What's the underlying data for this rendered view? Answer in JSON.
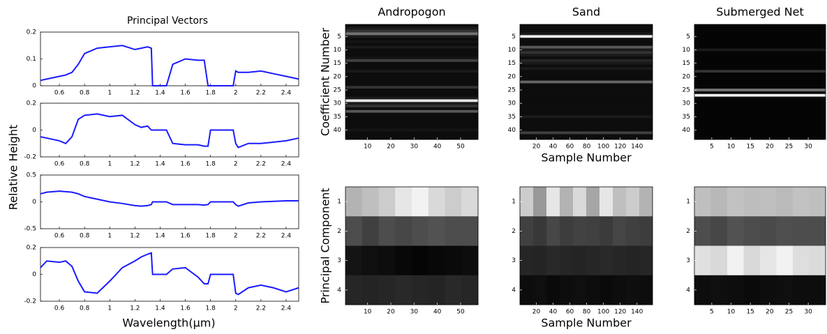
{
  "chart_data": [
    {
      "type": "line",
      "title": "Principal Vectors",
      "ylabel": "Relative Height",
      "color": "#1a1aff",
      "x": [
        0.45,
        0.5,
        0.6,
        0.65,
        0.7,
        0.75,
        0.8,
        0.9,
        1.0,
        1.1,
        1.2,
        1.25,
        1.3,
        1.33,
        1.34,
        1.4,
        1.45,
        1.5,
        1.6,
        1.7,
        1.75,
        1.78,
        1.8,
        1.9,
        1.98,
        2.0,
        2.02,
        2.1,
        2.2,
        2.3,
        2.4,
        2.5
      ],
      "values": [
        0.02,
        0.025,
        0.035,
        0.04,
        0.05,
        0.08,
        0.12,
        0.14,
        0.145,
        0.15,
        0.135,
        0.14,
        0.145,
        0.14,
        0,
        0,
        0,
        0.08,
        0.1,
        0.095,
        0.095,
        0,
        0,
        0,
        0,
        0.055,
        0.05,
        0.05,
        0.055,
        0.045,
        0.035,
        0.025
      ],
      "xlim": [
        0.45,
        2.5
      ],
      "xticks": [
        0.6,
        0.8,
        1,
        1.2,
        1.4,
        1.6,
        1.8,
        2,
        2.2,
        2.4
      ],
      "ylim": [
        0,
        0.2
      ],
      "yticks": [
        0,
        0.1,
        0.2
      ]
    },
    {
      "type": "line",
      "color": "#1a1aff",
      "x": [
        0.45,
        0.5,
        0.6,
        0.65,
        0.7,
        0.75,
        0.8,
        0.9,
        1.0,
        1.1,
        1.2,
        1.25,
        1.3,
        1.33,
        1.34,
        1.4,
        1.45,
        1.5,
        1.6,
        1.7,
        1.75,
        1.78,
        1.8,
        1.9,
        1.98,
        2.0,
        2.02,
        2.1,
        2.2,
        2.3,
        2.4,
        2.5
      ],
      "values": [
        -0.05,
        -0.06,
        -0.08,
        -0.1,
        -0.05,
        0.08,
        0.11,
        0.12,
        0.1,
        0.11,
        0.04,
        0.02,
        0.03,
        0,
        0,
        0,
        0,
        -0.1,
        -0.11,
        -0.11,
        -0.12,
        -0.12,
        0,
        0,
        0,
        -0.1,
        -0.13,
        -0.1,
        -0.1,
        -0.09,
        -0.08,
        -0.06
      ],
      "xlim": [
        0.45,
        2.5
      ],
      "xticks": [
        0.6,
        0.8,
        1,
        1.2,
        1.4,
        1.6,
        1.8,
        2,
        2.2,
        2.4
      ],
      "ylim": [
        -0.2,
        0.2
      ],
      "yticks": [
        -0.2,
        0,
        0.2
      ]
    },
    {
      "type": "line",
      "color": "#1a1aff",
      "x": [
        0.45,
        0.5,
        0.6,
        0.65,
        0.7,
        0.75,
        0.8,
        0.9,
        1.0,
        1.1,
        1.2,
        1.25,
        1.3,
        1.33,
        1.34,
        1.4,
        1.45,
        1.5,
        1.6,
        1.7,
        1.75,
        1.78,
        1.8,
        1.9,
        1.98,
        2.0,
        2.02,
        2.1,
        2.2,
        2.3,
        2.4,
        2.5
      ],
      "values": [
        0.15,
        0.18,
        0.2,
        0.19,
        0.18,
        0.15,
        0.1,
        0.05,
        0,
        -0.03,
        -0.07,
        -0.08,
        -0.07,
        -0.05,
        0,
        0,
        0,
        -0.05,
        -0.05,
        -0.05,
        -0.06,
        -0.05,
        0,
        0,
        0,
        -0.05,
        -0.08,
        -0.02,
        0,
        0.01,
        0.02,
        0.02
      ],
      "xlim": [
        0.45,
        2.5
      ],
      "xticks": [
        0.6,
        0.8,
        1,
        1.2,
        1.4,
        1.6,
        1.8,
        2,
        2.2,
        2.4
      ],
      "ylim": [
        -0.5,
        0.5
      ],
      "yticks": [
        -0.5,
        0,
        0.5
      ]
    },
    {
      "type": "line",
      "xlabel": "Wavelength(μm)",
      "color": "#1a1aff",
      "x": [
        0.45,
        0.5,
        0.6,
        0.65,
        0.7,
        0.75,
        0.8,
        0.9,
        1.0,
        1.1,
        1.2,
        1.25,
        1.3,
        1.33,
        1.34,
        1.4,
        1.45,
        1.5,
        1.6,
        1.7,
        1.75,
        1.78,
        1.8,
        1.9,
        1.98,
        2.0,
        2.02,
        2.1,
        2.2,
        2.3,
        2.4,
        2.5
      ],
      "values": [
        0.05,
        0.1,
        0.09,
        0.1,
        0.06,
        -0.05,
        -0.13,
        -0.14,
        -0.05,
        0.05,
        0.1,
        0.13,
        0.15,
        0.16,
        0,
        0,
        0,
        0.04,
        0.05,
        -0.02,
        -0.07,
        -0.07,
        0,
        0,
        0,
        -0.14,
        -0.15,
        -0.1,
        -0.08,
        -0.1,
        -0.13,
        -0.1
      ],
      "xlim": [
        0.45,
        2.5
      ],
      "xticks": [
        0.6,
        0.8,
        1,
        1.2,
        1.4,
        1.6,
        1.8,
        2,
        2.2,
        2.4
      ],
      "ylim": [
        -0.2,
        0.2
      ],
      "yticks": [
        -0.2,
        0,
        0.2
      ]
    },
    {
      "type": "heatmap",
      "title": "Andropogon",
      "ylabel": "Coefficient Number",
      "values": [
        [
          0.05
        ],
        [
          0.1
        ],
        [
          0.2
        ],
        [
          0.45
        ],
        [
          0.1
        ],
        [
          0.05
        ],
        [
          0.08
        ],
        [
          0.05
        ],
        [
          0.1
        ],
        [
          0.05
        ],
        [
          0.05
        ],
        [
          0.05
        ],
        [
          0.08
        ],
        [
          0.25
        ],
        [
          0.05
        ],
        [
          0.05
        ],
        [
          0.05
        ],
        [
          0.1
        ],
        [
          0.05
        ],
        [
          0.05
        ],
        [
          0.05
        ],
        [
          0.05
        ],
        [
          0.05
        ],
        [
          0.2
        ],
        [
          0.05
        ],
        [
          0.05
        ],
        [
          0.05
        ],
        [
          0.1
        ],
        [
          0.9
        ],
        [
          0.1
        ],
        [
          0.2
        ],
        [
          0.05
        ],
        [
          0.35
        ],
        [
          0.05
        ],
        [
          0.05
        ],
        [
          0.05
        ],
        [
          0.05
        ],
        [
          0.05
        ],
        [
          0.05
        ],
        [
          0.08
        ],
        [
          0.05
        ],
        [
          0.05
        ],
        [
          0.05
        ]
      ],
      "xlim": [
        0.5,
        57.5
      ],
      "xticks": [
        10,
        20,
        30,
        40,
        50
      ],
      "ylim": [
        0.5,
        43.5
      ],
      "yticks": [
        5,
        10,
        15,
        20,
        25,
        30,
        35,
        40
      ]
    },
    {
      "type": "heatmap",
      "title": "Sand",
      "xlabel": "Sample Number",
      "values": [
        [
          0.05
        ],
        [
          0.05
        ],
        [
          0.05
        ],
        [
          0.1
        ],
        [
          0.95
        ],
        [
          0.05
        ],
        [
          0.05
        ],
        [
          0.05
        ],
        [
          0.35
        ],
        [
          0.1
        ],
        [
          0.2
        ],
        [
          0.1
        ],
        [
          0.05
        ],
        [
          0.15
        ],
        [
          0.1
        ],
        [
          0.05
        ],
        [
          0.1
        ],
        [
          0.05
        ],
        [
          0.05
        ],
        [
          0.05
        ],
        [
          0.05
        ],
        [
          0.4
        ],
        [
          0.05
        ],
        [
          0.05
        ],
        [
          0.05
        ],
        [
          0.05
        ],
        [
          0.05
        ],
        [
          0.05
        ],
        [
          0.05
        ],
        [
          0.05
        ],
        [
          0.05
        ],
        [
          0.05
        ],
        [
          0.05
        ],
        [
          0.05
        ],
        [
          0.1
        ],
        [
          0.05
        ],
        [
          0.05
        ],
        [
          0.05
        ],
        [
          0.05
        ],
        [
          0.05
        ],
        [
          0.25
        ],
        [
          0.05
        ],
        [
          0.05
        ]
      ],
      "xlim": [
        0.5,
        158.5
      ],
      "xticks": [
        20,
        40,
        60,
        80,
        100,
        120,
        140
      ],
      "ylim": [
        0.5,
        43.5
      ],
      "yticks": [
        5,
        10,
        15,
        20,
        25,
        30,
        35,
        40
      ]
    },
    {
      "type": "heatmap",
      "title": "Submerged Net",
      "values": [
        [
          0.02
        ],
        [
          0.02
        ],
        [
          0.02
        ],
        [
          0.02
        ],
        [
          0.02
        ],
        [
          0.02
        ],
        [
          0.02
        ],
        [
          0.02
        ],
        [
          0.02
        ],
        [
          0.1
        ],
        [
          0.02
        ],
        [
          0.02
        ],
        [
          0.02
        ],
        [
          0.02
        ],
        [
          0.02
        ],
        [
          0.02
        ],
        [
          0.02
        ],
        [
          0.2
        ],
        [
          0.02
        ],
        [
          0.02
        ],
        [
          0.02
        ],
        [
          0.02
        ],
        [
          0.02
        ],
        [
          0.02
        ],
        [
          0.45
        ],
        [
          0.05
        ],
        [
          0.95
        ],
        [
          0.05
        ],
        [
          0.02
        ],
        [
          0.02
        ],
        [
          0.02
        ],
        [
          0.02
        ],
        [
          0.02
        ],
        [
          0.02
        ],
        [
          0.02
        ],
        [
          0.02
        ],
        [
          0.02
        ],
        [
          0.02
        ],
        [
          0.02
        ],
        [
          0.02
        ],
        [
          0.02
        ],
        [
          0.02
        ],
        [
          0.02
        ]
      ],
      "xlim": [
        0.5,
        34.5
      ],
      "xticks": [
        5,
        10,
        15,
        20,
        25,
        30
      ],
      "ylim": [
        0.5,
        43.5
      ],
      "yticks": [
        5,
        10,
        15,
        20,
        25,
        30,
        35,
        40
      ]
    },
    {
      "type": "heatmap",
      "ylabel": "Principal Component",
      "values": [
        [
          0.7,
          0.75,
          0.8,
          0.9,
          0.95,
          0.85,
          0.8,
          0.85
        ],
        [
          0.3,
          0.25,
          0.3,
          0.28,
          0.3,
          0.32,
          0.3,
          0.3
        ],
        [
          0.08,
          0.06,
          0.05,
          0.03,
          0.02,
          0.03,
          0.04,
          0.05
        ],
        [
          0.15,
          0.14,
          0.15,
          0.16,
          0.15,
          0.14,
          0.16,
          0.15
        ]
      ],
      "xlim": [
        0.5,
        57.5
      ],
      "xticks": [
        10,
        20,
        30,
        40,
        50
      ],
      "ylim": [
        0.5,
        4.5
      ],
      "yticks": [
        1,
        2,
        3,
        4
      ]
    },
    {
      "type": "heatmap",
      "xlabel": "Sample Number",
      "values": [
        [
          0.8,
          0.6,
          0.9,
          0.7,
          0.85,
          0.65,
          0.9,
          0.75,
          0.8,
          0.7
        ],
        [
          0.25,
          0.22,
          0.28,
          0.24,
          0.26,
          0.25,
          0.23,
          0.27,
          0.25,
          0.24
        ],
        [
          0.15,
          0.14,
          0.16,
          0.15,
          0.14,
          0.15,
          0.16,
          0.15,
          0.14,
          0.15
        ],
        [
          0.05,
          0.06,
          0.04,
          0.05,
          0.06,
          0.05,
          0.04,
          0.05,
          0.06,
          0.05
        ]
      ],
      "xlim": [
        0.5,
        158.5
      ],
      "xticks": [
        20,
        40,
        60,
        80,
        100,
        120,
        140
      ],
      "ylim": [
        0.5,
        4.5
      ],
      "yticks": [
        1,
        2,
        3,
        4
      ]
    },
    {
      "type": "heatmap",
      "values": [
        [
          0.75,
          0.72,
          0.76,
          0.74,
          0.75,
          0.73,
          0.76,
          0.75
        ],
        [
          0.3,
          0.28,
          0.32,
          0.3,
          0.29,
          0.31,
          0.3,
          0.3
        ],
        [
          0.88,
          0.85,
          0.95,
          0.85,
          0.9,
          0.95,
          0.87,
          0.86
        ],
        [
          0.05,
          0.06,
          0.05,
          0.04,
          0.05,
          0.06,
          0.05,
          0.05
        ]
      ],
      "xlim": [
        0.5,
        34.5
      ],
      "xticks": [
        5,
        10,
        15,
        20,
        25,
        30
      ],
      "ylim": [
        0.5,
        4.5
      ],
      "yticks": [
        1,
        2,
        3,
        4
      ]
    }
  ]
}
